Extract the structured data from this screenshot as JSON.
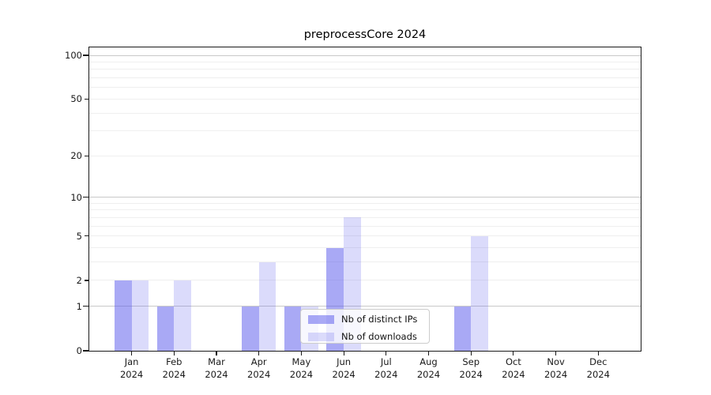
{
  "title": "preprocessCore 2024",
  "chart_data": {
    "type": "bar",
    "title": "preprocessCore 2024",
    "y_scale": "log1p",
    "grid": true,
    "ylim": [
      0,
      100
    ],
    "categories": [
      {
        "month": "Jan",
        "year": "2024"
      },
      {
        "month": "Feb",
        "year": "2024"
      },
      {
        "month": "Mar",
        "year": "2024"
      },
      {
        "month": "Apr",
        "year": "2024"
      },
      {
        "month": "May",
        "year": "2024"
      },
      {
        "month": "Jun",
        "year": "2024"
      },
      {
        "month": "Jul",
        "year": "2024"
      },
      {
        "month": "Aug",
        "year": "2024"
      },
      {
        "month": "Sep",
        "year": "2024"
      },
      {
        "month": "Oct",
        "year": "2024"
      },
      {
        "month": "Nov",
        "year": "2024"
      },
      {
        "month": "Dec",
        "year": "2024"
      }
    ],
    "series": [
      {
        "name": "Nb of distinct IPs",
        "values": [
          2,
          1,
          0,
          1,
          1,
          4,
          0,
          0,
          1,
          0,
          0,
          0
        ],
        "color": "#a9a9f3",
        "rgba": "rgba(90,90,235,0.52)"
      },
      {
        "name": "Nb of downloads",
        "values": [
          2,
          2,
          0,
          3,
          1,
          7,
          0,
          0,
          5,
          0,
          0,
          0
        ],
        "color": "#dcdcf9",
        "rgba": "rgba(90,90,235,0.22)"
      }
    ],
    "yticks": [
      {
        "value": 0,
        "label": "0"
      },
      {
        "value": 1,
        "label": "1"
      },
      {
        "value": 2,
        "label": "2"
      },
      {
        "value": 5,
        "label": "5"
      },
      {
        "value": 10,
        "label": "10"
      },
      {
        "value": 20,
        "label": "20"
      },
      {
        "value": 50,
        "label": "50"
      },
      {
        "value": 100,
        "label": "100"
      }
    ],
    "legend": {
      "position": "lower center"
    }
  }
}
